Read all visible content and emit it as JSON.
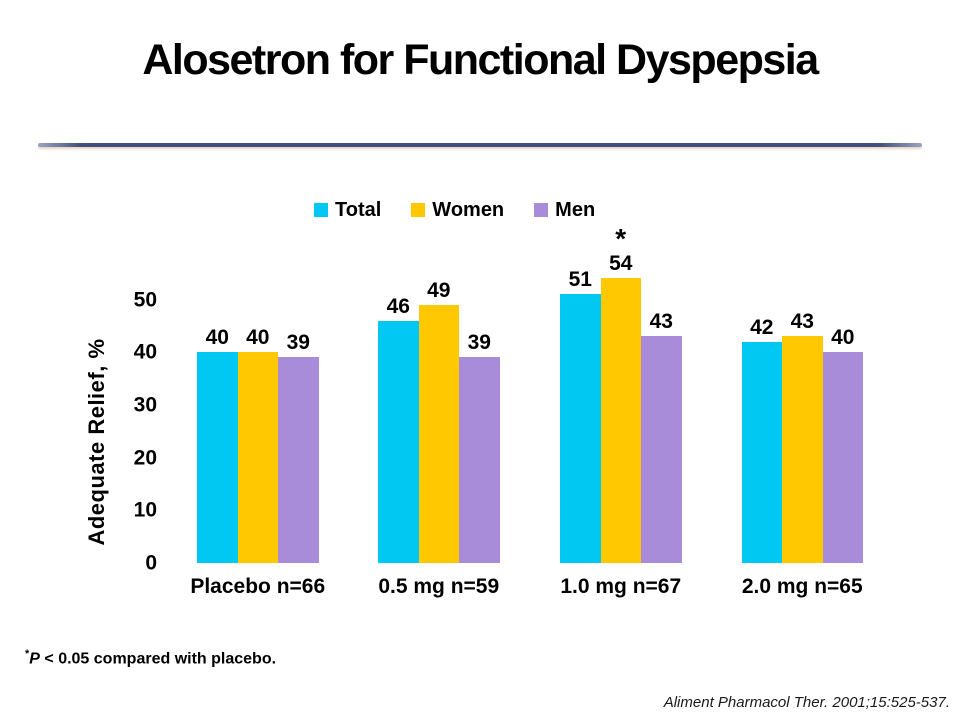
{
  "title": "Alosetron for Functional Dyspepsia",
  "footnote": {
    "star": "*",
    "p": "P",
    "rest": " < 0.05 compared with placebo."
  },
  "citation": "Aliment Pharmacol Ther. 2001;15:525-537.",
  "colors": {
    "divider": "#3e4e80",
    "total": "#00c8f2",
    "women": "#ffc800",
    "men": "#a88cd9"
  },
  "chart_data": {
    "type": "bar",
    "title": "",
    "xlabel": "",
    "ylabel": "Adequate  Relief, %",
    "ylim": [
      0,
      55
    ],
    "yticks": [
      0,
      10,
      20,
      30,
      40,
      50
    ],
    "grid": false,
    "legend_position": "top",
    "bar_value_labels": true,
    "categories": [
      "Placebo n=66",
      "0.5 mg n=59",
      "1.0 mg n=67",
      "2.0 mg n=65"
    ],
    "series": [
      {
        "name": "Total",
        "color": "#00c8f2",
        "values": [
          40,
          46,
          51,
          42
        ]
      },
      {
        "name": "Women",
        "color": "#ffc800",
        "values": [
          40,
          49,
          54,
          43
        ]
      },
      {
        "name": "Men",
        "color": "#a88cd9",
        "values": [
          39,
          39,
          43,
          40
        ]
      }
    ],
    "annotations": [
      {
        "category_index": 2,
        "series_index": 1,
        "text": "*"
      }
    ]
  }
}
